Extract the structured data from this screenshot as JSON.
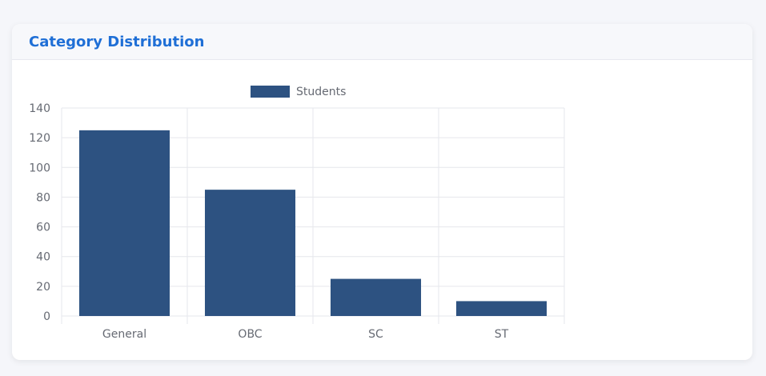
{
  "card": {
    "title": "Category Distribution"
  },
  "colors": {
    "bar": "#2d5281",
    "grid": "#e6e7ec",
    "title": "#1f6fd6",
    "tick_text": "#666a73"
  },
  "chart_data": {
    "type": "bar",
    "categories": [
      "General",
      "OBC",
      "SC",
      "ST"
    ],
    "series": [
      {
        "name": "Students",
        "values": [
          125,
          85,
          25,
          10
        ]
      }
    ],
    "ylim": [
      0,
      140
    ],
    "yticks": [
      0,
      20,
      40,
      60,
      80,
      100,
      120,
      140
    ],
    "grid": true,
    "legend_position": "top-center",
    "xlabel": "",
    "ylabel": ""
  }
}
